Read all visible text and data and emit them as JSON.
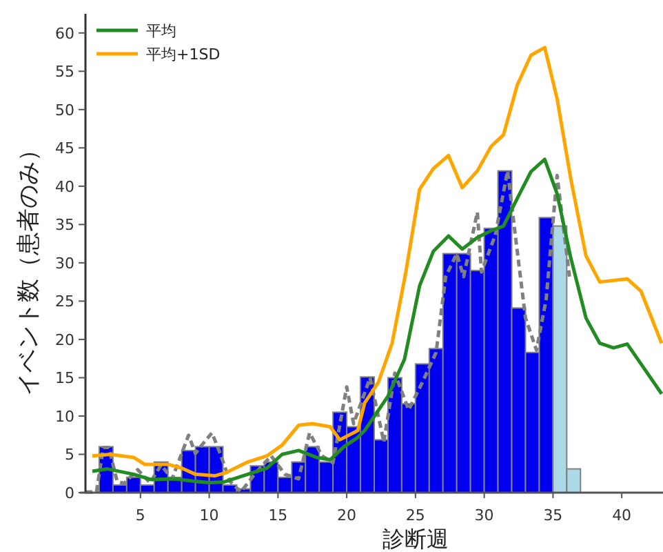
{
  "chart_data": {
    "type": "histogram",
    "xlabel": "診断週",
    "ylabel": "イベント数（患者のみ）",
    "bins": [
      2,
      3,
      4,
      5,
      6,
      7,
      8,
      9,
      10,
      11,
      12,
      13,
      14,
      15,
      16,
      17,
      18,
      19,
      20,
      21,
      22,
      23,
      24,
      25,
      26,
      27,
      28,
      29,
      30,
      31,
      32,
      33,
      34,
      35,
      36,
      37
    ],
    "values": [
      6,
      1,
      2,
      1,
      4,
      2,
      5.5,
      6,
      6,
      1,
      0.5,
      3.5,
      4,
      2,
      4,
      6,
      4,
      10.5,
      8.6,
      15.1,
      6.9,
      15,
      11.6,
      16.8,
      18.8,
      31.2,
      31.2,
      29,
      34.5,
      42,
      24.1,
      18.3,
      35.9,
      34.8,
      3.1
    ],
    "colors": [
      "#0000ee",
      "#0000ee",
      "#0000ee",
      "#0000ee",
      "#0000ee",
      "#0000ee",
      "#0000ee",
      "#0000ee",
      "#0000ee",
      "#0000ee",
      "#0000ee",
      "#0000ee",
      "#0000ee",
      "#0000ee",
      "#0000ee",
      "#0000ee",
      "#0000ee",
      "#0000ee",
      "#0000ee",
      "#0000ee",
      "#0000ee",
      "#0000ee",
      "#0000ee",
      "#0000ee",
      "#0000ee",
      "#0000ee",
      "#0000ee",
      "#0000ee",
      "#0000ee",
      "#0000ee",
      "#0000ee",
      "#0000ee",
      "#0000ee",
      "#add8e6",
      "#add8e6"
    ],
    "series": [
      {
        "type": "line",
        "line_style": "dashed",
        "color": "#808080",
        "x": [
          1.0,
          1.8,
          2.3,
          2.7,
          3.3,
          3.8,
          4.8,
          5.7,
          6.5,
          7.3,
          8.5,
          9.0,
          9.5,
          10.2,
          10.8,
          11.5,
          12.3,
          13.3,
          14.5,
          15.5,
          16.5,
          17.3,
          18.2,
          19.0,
          20.0,
          20.5,
          21.7,
          22.7,
          23.5,
          24.5,
          25.5,
          26.5,
          27.2,
          28.0,
          28.5,
          29.5,
          29.8,
          30.8,
          31.7,
          32.3,
          33.0,
          33.8,
          34.5,
          35.3,
          36.2
        ],
        "values": [
          0.1,
          0.1,
          5.9,
          5.9,
          1.5,
          1.2,
          3.0,
          1.3,
          3.6,
          1.8,
          7.5,
          5.1,
          6.3,
          7.8,
          5.1,
          1.5,
          0.1,
          2.4,
          4.8,
          2.4,
          1.8,
          7.8,
          4.8,
          3.9,
          13.8,
          9.0,
          15.0,
          6.6,
          15.6,
          10.8,
          14.4,
          18.3,
          28.2,
          31.2,
          28.2,
          36.6,
          28.8,
          33.6,
          42.0,
          33.0,
          22.8,
          18.6,
          25.2,
          41.4,
          28.2
        ]
      },
      {
        "type": "line",
        "name": "平均",
        "color": "#228b22",
        "x": [
          1.5,
          2.6,
          4.5,
          5.8,
          7.5,
          8.8,
          10.0,
          11.1,
          12.8,
          14.2,
          15.3,
          16.5,
          17.8,
          18.8,
          19.8,
          20.8,
          21.3,
          23.0,
          24.2,
          25.3,
          26.3,
          27.4,
          28.4,
          29.5,
          30.5,
          31.4,
          32.4,
          33.4,
          34.4,
          35.3,
          36.3,
          37.4,
          38.4,
          39.4,
          40.4,
          41.4,
          42.9
        ],
        "values": [
          2.8,
          3.1,
          2.4,
          1.7,
          1.8,
          1.5,
          1.3,
          1.4,
          2.4,
          3.2,
          5.0,
          5.5,
          4.6,
          4.3,
          6.0,
          7.2,
          8.1,
          12.6,
          17.4,
          27.0,
          31.5,
          33.5,
          31.8,
          33.3,
          34.2,
          34.8,
          38.4,
          41.9,
          43.5,
          39.0,
          30.6,
          22.8,
          19.5,
          18.9,
          19.4,
          16.8,
          12.9
        ]
      },
      {
        "type": "line",
        "name": "平均+1SD",
        "color": "#ffa500",
        "x": [
          1.5,
          2.8,
          4.5,
          5.3,
          7.0,
          8.0,
          9.0,
          10.4,
          11.2,
          12.8,
          14.2,
          15.3,
          16.5,
          17.5,
          18.8,
          19.5,
          20.8,
          21.3,
          22.3,
          23.3,
          24.3,
          25.3,
          26.3,
          27.4,
          28.4,
          29.5,
          30.5,
          31.4,
          32.4,
          33.4,
          34.4,
          35.3,
          36.3,
          37.4,
          38.4,
          40.4,
          41.4,
          42.9
        ],
        "values": [
          4.8,
          5.0,
          4.6,
          3.7,
          3.7,
          3.2,
          2.4,
          2.2,
          2.6,
          4.0,
          4.8,
          6.2,
          8.8,
          9.0,
          8.6,
          6.9,
          8.1,
          11.7,
          14.4,
          19.5,
          28.8,
          39.6,
          42.3,
          44.0,
          39.8,
          42.0,
          45.2,
          46.7,
          53.2,
          57.1,
          58.1,
          51.4,
          40.9,
          30.9,
          27.5,
          27.9,
          26.3,
          19.5
        ]
      }
    ],
    "xlim": [
      1,
      43
    ],
    "ylim": [
      0,
      62.5
    ],
    "xticks": [
      5,
      10,
      15,
      20,
      25,
      30,
      35,
      40
    ],
    "yticks": [
      0,
      5,
      10,
      15,
      20,
      25,
      30,
      35,
      40,
      45,
      50,
      55,
      60
    ],
    "legend": "top left",
    "grid": false
  }
}
